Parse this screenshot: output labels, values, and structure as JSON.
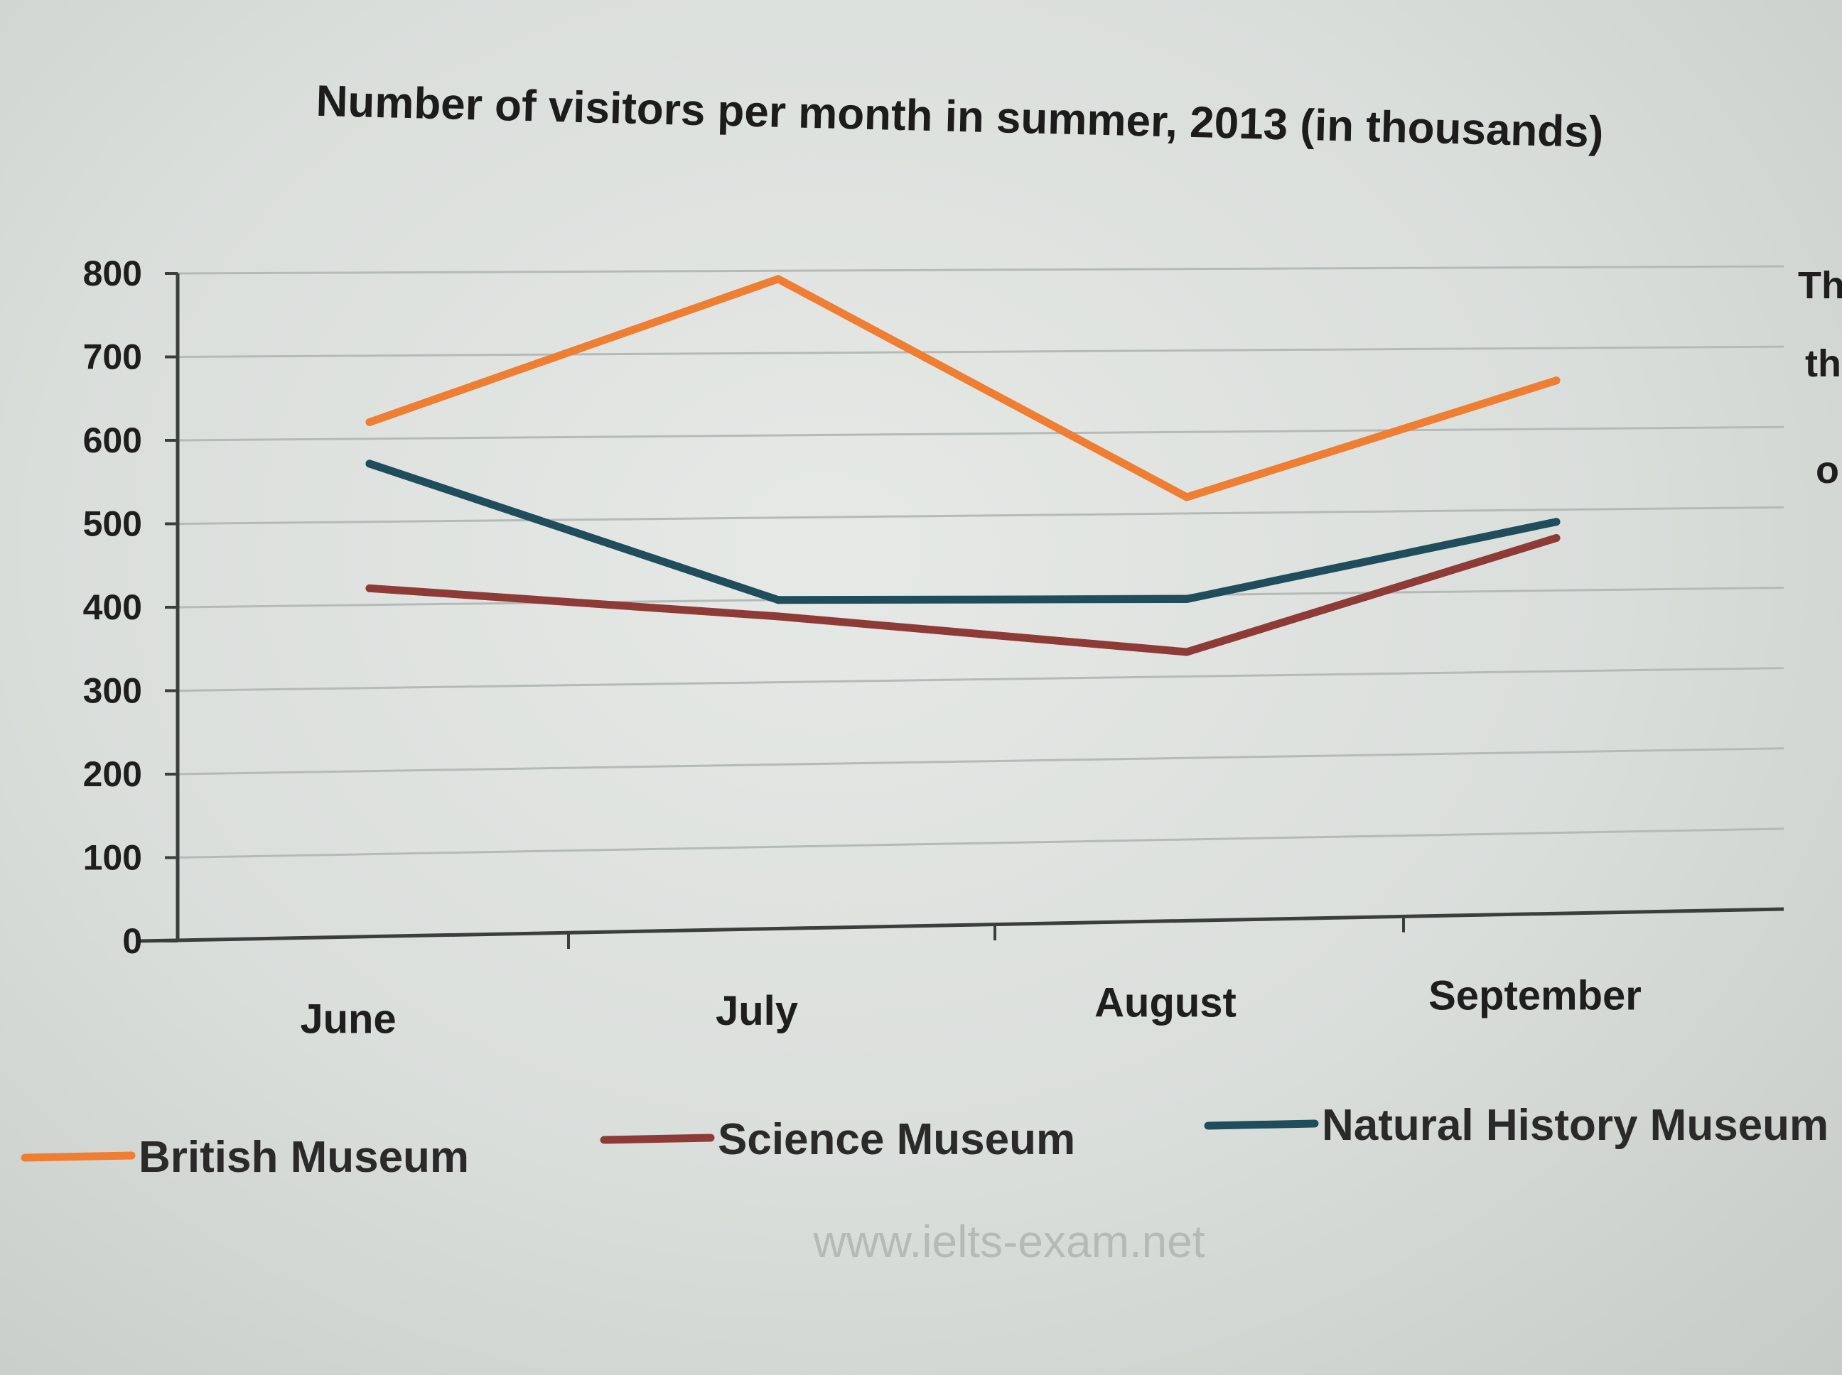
{
  "chart_data": {
    "type": "line",
    "title": "Number of visitors per month in summer, 2013 (in thousands)",
    "xlabel": "",
    "ylabel": "",
    "categories": [
      "June",
      "July",
      "August",
      "September"
    ],
    "yticks": [
      "0",
      "100",
      "200",
      "300",
      "400",
      "500",
      "600",
      "700",
      "800"
    ],
    "ylim": [
      0,
      800
    ],
    "grid": true,
    "legend_position": "bottom",
    "series": [
      {
        "name": "British Museum",
        "color": "#ef7d32",
        "values": [
          620,
          790,
          520,
          660
        ]
      },
      {
        "name": "Science Museum",
        "color": "#8e3b38",
        "values": [
          420,
          380,
          330,
          465
        ]
      },
      {
        "name": "Natural History Museum",
        "color": "#1f4d5c",
        "values": [
          570,
          400,
          395,
          485
        ]
      }
    ]
  },
  "margin_text": [
    "Th",
    "th",
    "o"
  ],
  "watermark": "www.ielts-exam.net"
}
